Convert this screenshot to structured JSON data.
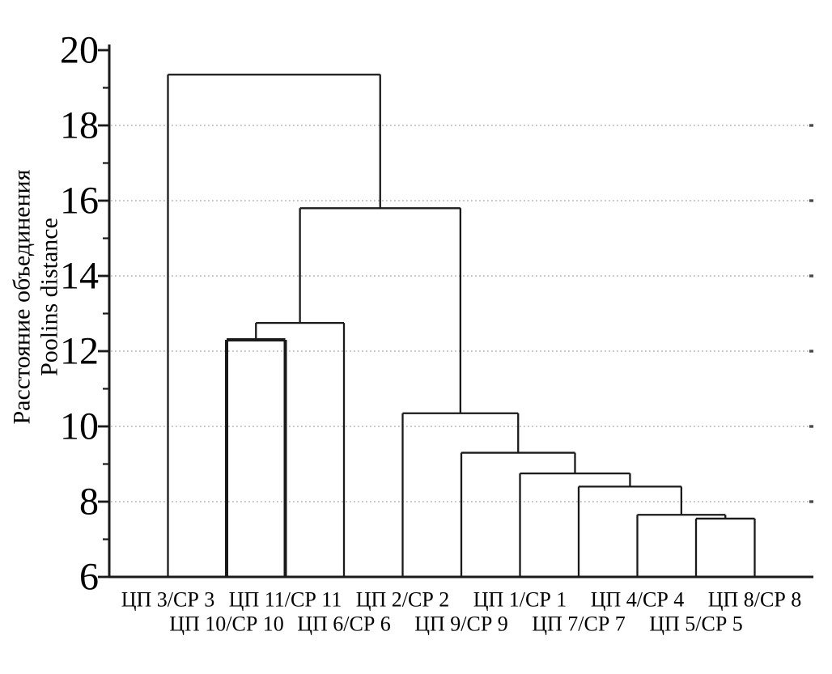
{
  "chart_data": {
    "type": "dendrogram",
    "title": "",
    "ylabel": [
      "Расстояние объединения",
      "Poolins distance"
    ],
    "xlabel": "",
    "ylim": [
      6,
      20
    ],
    "major_yticks": [
      "20",
      "18",
      "16",
      "14",
      "12",
      "10",
      "8",
      "6"
    ],
    "major_ytick_values": [
      20,
      18,
      16,
      14,
      12,
      10,
      8,
      6
    ],
    "minor_ytick_values": [
      19,
      17,
      15,
      13,
      11,
      9,
      7
    ],
    "gridline_values": [
      18,
      16,
      14,
      12,
      10,
      8
    ],
    "grid_style": "dotted horizontal",
    "legend": "none",
    "baseline_value": 6,
    "leaves": [
      {
        "id": "L0",
        "label": "ЦП 3/СР 3"
      },
      {
        "id": "L1",
        "label": "ЦП 10/СР 10"
      },
      {
        "id": "L2",
        "label": "ЦП 11/СР 11"
      },
      {
        "id": "L3",
        "label": "ЦП 6/СР 6"
      },
      {
        "id": "L4",
        "label": "ЦП 2/СР 2"
      },
      {
        "id": "L5",
        "label": "ЦП 9/СР 9"
      },
      {
        "id": "L6",
        "label": "ЦП 1/СР 1"
      },
      {
        "id": "L7",
        "label": "ЦП 7/СР 7"
      },
      {
        "id": "L8",
        "label": "ЦП 4/СР 4"
      },
      {
        "id": "L9",
        "label": "ЦП 5/СР 5"
      },
      {
        "id": "L10",
        "label": "ЦП 8/СР 8"
      }
    ],
    "merges": [
      {
        "id": "M1",
        "a": "L9",
        "b": "L10",
        "height": 7.55,
        "bold": false
      },
      {
        "id": "M2",
        "a": "L8",
        "b": "M1",
        "height": 7.65,
        "bold": false
      },
      {
        "id": "M3",
        "a": "L7",
        "b": "M2",
        "height": 8.4,
        "bold": false
      },
      {
        "id": "M4",
        "a": "L6",
        "b": "M3",
        "height": 8.75,
        "bold": false
      },
      {
        "id": "M5",
        "a": "L5",
        "b": "M4",
        "height": 9.3,
        "bold": false
      },
      {
        "id": "M6",
        "a": "L4",
        "b": "M5",
        "height": 10.35,
        "bold": false
      },
      {
        "id": "M7",
        "a": "L1",
        "b": "L2",
        "height": 12.3,
        "bold": true
      },
      {
        "id": "M8",
        "a": "M7",
        "b": "L3",
        "height": 12.75,
        "bold": false
      },
      {
        "id": "M9",
        "a": "M8",
        "b": "M6",
        "height": 15.8,
        "bold": false
      },
      {
        "id": "M10",
        "a": "L0",
        "b": "M9",
        "height": 19.35,
        "bold": false
      }
    ]
  },
  "colors": {
    "background": "#ffffff",
    "line": "#1a1a1a",
    "grid": "#b3b3b3",
    "grid_end_dot": "#4a4a4a",
    "text": "#000000"
  }
}
